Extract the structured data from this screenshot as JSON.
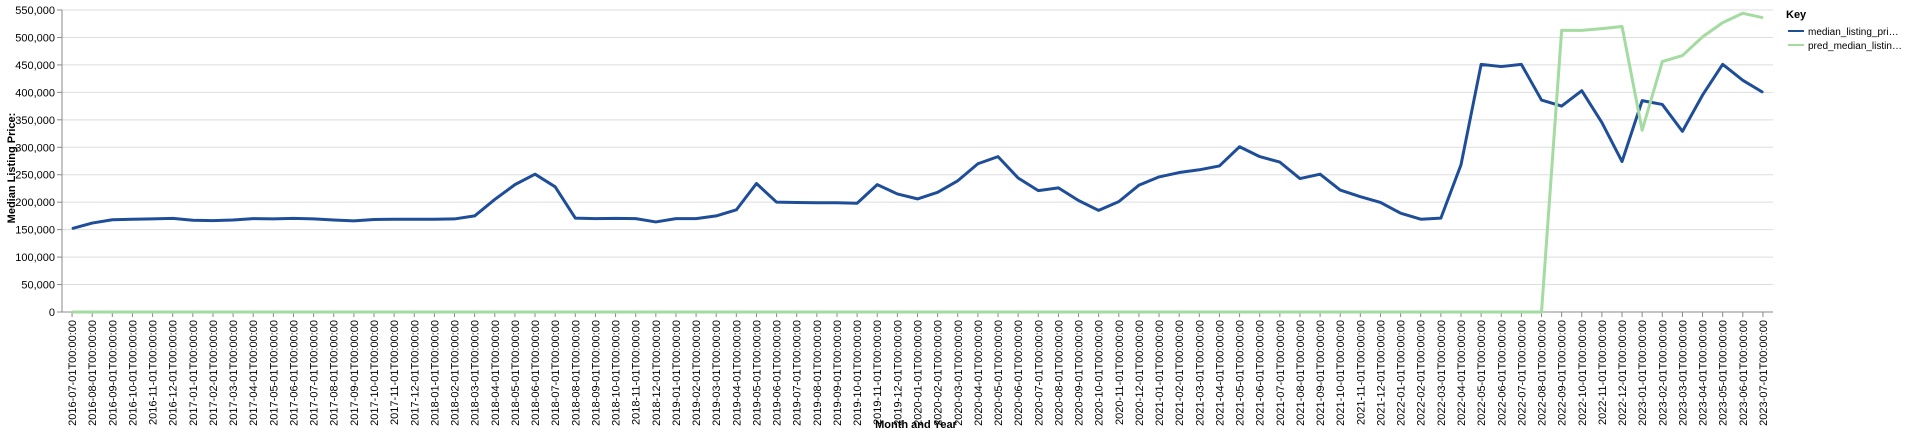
{
  "chart_data": {
    "type": "line",
    "xlabel": "Month and Year",
    "ylabel": "Median Listing Price:",
    "ylim": [
      0,
      550000
    ],
    "yticks": [
      "0",
      "50,000",
      "100,000",
      "150,000",
      "200,000",
      "250,000",
      "300,000",
      "350,000",
      "400,000",
      "450,000",
      "500,000",
      "550,000"
    ],
    "grid": "horizontal",
    "legend": {
      "title": "Key",
      "placement": "right",
      "items": [
        {
          "label": "median_listing_pri…",
          "color": "#1f4e99"
        },
        {
          "label": "pred_median_listin…",
          "color": "#a3dba0"
        }
      ]
    },
    "x": [
      "2016-07-01T00:00:00",
      "2016-08-01T00:00:00",
      "2016-09-01T00:00:00",
      "2016-10-01T00:00:00",
      "2016-11-01T00:00:00",
      "2016-12-01T00:00:00",
      "2017-01-01T00:00:00",
      "2017-02-01T00:00:00",
      "2017-03-01T00:00:00",
      "2017-04-01T00:00:00",
      "2017-05-01T00:00:00",
      "2017-06-01T00:00:00",
      "2017-07-01T00:00:00",
      "2017-08-01T00:00:00",
      "2017-09-01T00:00:00",
      "2017-10-01T00:00:00",
      "2017-11-01T00:00:00",
      "2017-12-01T00:00:00",
      "2018-01-01T00:00:00",
      "2018-02-01T00:00:00",
      "2018-03-01T00:00:00",
      "2018-04-01T00:00:00",
      "2018-05-01T00:00:00",
      "2018-06-01T00:00:00",
      "2018-07-01T00:00:00",
      "2018-08-01T00:00:00",
      "2018-09-01T00:00:00",
      "2018-10-01T00:00:00",
      "2018-11-01T00:00:00",
      "2018-12-01T00:00:00",
      "2019-01-01T00:00:00",
      "2019-02-01T00:00:00",
      "2019-03-01T00:00:00",
      "2019-04-01T00:00:00",
      "2019-05-01T00:00:00",
      "2019-06-01T00:00:00",
      "2019-07-01T00:00:00",
      "2019-08-01T00:00:00",
      "2019-09-01T00:00:00",
      "2019-10-01T00:00:00",
      "2019-11-01T00:00:00",
      "2019-12-01T00:00:00",
      "2020-01-01T00:00:00",
      "2020-02-01T00:00:00",
      "2020-03-01T00:00:00",
      "2020-04-01T00:00:00",
      "2020-05-01T00:00:00",
      "2020-06-01T00:00:00",
      "2020-07-01T00:00:00",
      "2020-08-01T00:00:00",
      "2020-09-01T00:00:00",
      "2020-10-01T00:00:00",
      "2020-11-01T00:00:00",
      "2020-12-01T00:00:00",
      "2021-01-01T00:00:00",
      "2021-02-01T00:00:00",
      "2021-03-01T00:00:00",
      "2021-04-01T00:00:00",
      "2021-05-01T00:00:00",
      "2021-06-01T00:00:00",
      "2021-07-01T00:00:00",
      "2021-08-01T00:00:00",
      "2021-09-01T00:00:00",
      "2021-10-01T00:00:00",
      "2021-11-01T00:00:00",
      "2021-12-01T00:00:00",
      "2022-01-01T00:00:00",
      "2022-02-01T00:00:00",
      "2022-03-01T00:00:00",
      "2022-04-01T00:00:00",
      "2022-05-01T00:00:00",
      "2022-06-01T00:00:00",
      "2022-07-01T00:00:00",
      "2022-08-01T00:00:00",
      "2022-09-01T00:00:00",
      "2022-10-01T00:00:00",
      "2022-11-01T00:00:00",
      "2022-12-01T00:00:00",
      "2023-01-01T00:00:00",
      "2023-02-01T00:00:00",
      "2023-03-01T00:00:00",
      "2023-04-01T00:00:00",
      "2023-05-01T00:00:00",
      "2023-06-01T00:00:00",
      "2023-07-01T00:00:00"
    ],
    "series": [
      {
        "name": "median_listing_pri…",
        "color": "#1f4e99",
        "values": [
          152000,
          162000,
          168000,
          169000,
          169500,
          170500,
          167000,
          166500,
          167500,
          170000,
          169500,
          170500,
          169500,
          167500,
          166000,
          168500,
          169000,
          169000,
          169000,
          169500,
          175000,
          205000,
          232000,
          251000,
          228000,
          171000,
          170000,
          170500,
          170000,
          164000,
          170000,
          170000,
          175000,
          186000,
          234000,
          200000,
          199500,
          199000,
          199000,
          198000,
          232000,
          215000,
          206000,
          218000,
          239000,
          270000,
          283000,
          244000,
          221000,
          226000,
          203000,
          185000,
          201000,
          231000,
          246000,
          254000,
          259000,
          266000,
          301000,
          283000,
          273000,
          243000,
          251000,
          222000,
          210000,
          199500,
          180000,
          169000,
          171000,
          268000,
          451000,
          447000,
          451000,
          386000,
          375000,
          403000,
          345000,
          274000,
          385000,
          378000,
          329000,
          395000,
          451000,
          422000,
          400000
        ]
      },
      {
        "name": "pred_median_listin…",
        "color": "#a3dba0",
        "values": [
          0,
          0,
          0,
          0,
          0,
          0,
          0,
          0,
          0,
          0,
          0,
          0,
          0,
          0,
          0,
          0,
          0,
          0,
          0,
          0,
          0,
          0,
          0,
          0,
          0,
          0,
          0,
          0,
          0,
          0,
          0,
          0,
          0,
          0,
          0,
          0,
          0,
          0,
          0,
          0,
          0,
          0,
          0,
          0,
          0,
          0,
          0,
          0,
          0,
          0,
          0,
          0,
          0,
          0,
          0,
          0,
          0,
          0,
          0,
          0,
          0,
          0,
          0,
          0,
          0,
          0,
          0,
          0,
          0,
          0,
          0,
          0,
          0,
          0,
          513000,
          513000,
          516000,
          520000,
          331000,
          456000,
          467000,
          501000,
          527000,
          544000,
          536000
        ]
      }
    ]
  }
}
